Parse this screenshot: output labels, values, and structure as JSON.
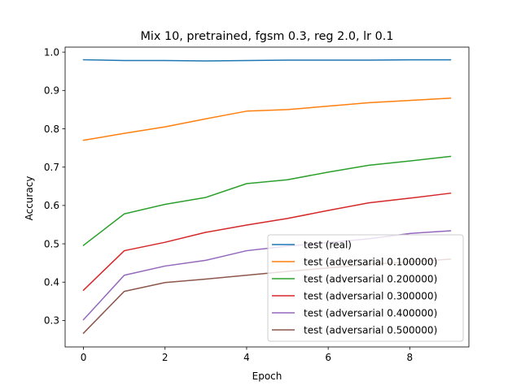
{
  "chart_data": {
    "type": "line",
    "title": "Mix 10, pretrained, fgsm 0.3, reg 2.0, lr 0.1",
    "xlabel": "Epoch",
    "ylabel": "Accuracy",
    "xlim": [
      -0.45,
      9.45
    ],
    "ylim": [
      0.231,
      1.013
    ],
    "xticks": [
      0,
      2,
      4,
      6,
      8
    ],
    "yticks": [
      0.3,
      0.4,
      0.5,
      0.6,
      0.7,
      0.8,
      0.9,
      1.0
    ],
    "ytick_labels": [
      "0.3",
      "0.4",
      "0.5",
      "0.6",
      "0.7",
      "0.8",
      "0.9",
      "1.0"
    ],
    "grid": false,
    "legend_position": "lower right",
    "x": [
      0,
      1,
      2,
      3,
      4,
      5,
      6,
      7,
      8,
      9
    ],
    "series": [
      {
        "name": "test (real)",
        "color": "#1f77b4",
        "values": [
          0.98,
          0.978,
          0.978,
          0.977,
          0.978,
          0.979,
          0.979,
          0.979,
          0.98,
          0.98
        ]
      },
      {
        "name": "test (adversarial 0.100000)",
        "color": "#ff7f0e",
        "values": [
          0.77,
          0.788,
          0.805,
          0.826,
          0.846,
          0.85,
          0.859,
          0.868,
          0.874,
          0.88
        ]
      },
      {
        "name": "test (adversarial 0.200000)",
        "color": "#2ca02c",
        "values": [
          0.496,
          0.578,
          0.603,
          0.621,
          0.657,
          0.667,
          0.687,
          0.705,
          0.716,
          0.728
        ]
      },
      {
        "name": "test (adversarial 0.300000)",
        "color": "#d62728",
        "values": [
          0.379,
          0.482,
          0.504,
          0.53,
          0.549,
          0.566,
          0.587,
          0.607,
          0.619,
          0.632
        ]
      },
      {
        "name": "test (adversarial 0.400000)",
        "color": "#9467bd",
        "values": [
          0.302,
          0.418,
          0.442,
          0.457,
          0.482,
          0.494,
          0.503,
          0.513,
          0.527,
          0.534
        ]
      },
      {
        "name": "test (adversarial 0.500000)",
        "color": "#8c564b",
        "values": [
          0.267,
          0.376,
          0.399,
          0.408,
          0.418,
          0.428,
          0.437,
          0.446,
          0.453,
          0.46
        ]
      }
    ]
  }
}
